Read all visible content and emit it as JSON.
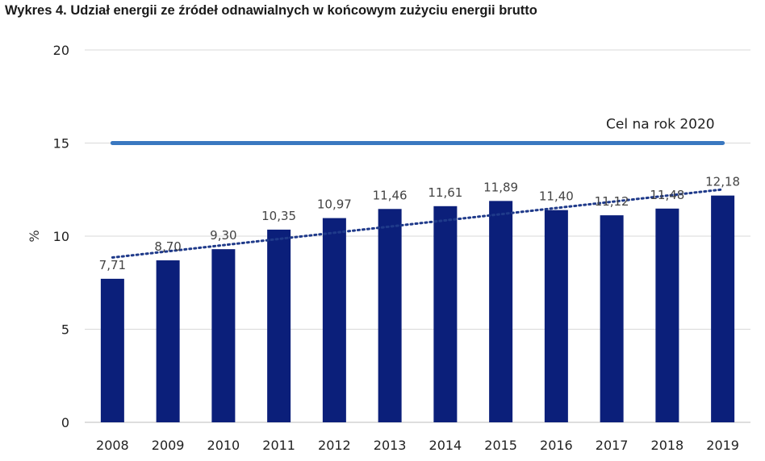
{
  "chart_data": {
    "type": "bar",
    "title": "Wykres 4. Udział energii ze źródeł odnawialnych w końcowym zużyciu energii brutto",
    "ylabel": "%",
    "xlabel": "",
    "ylim": [
      0,
      20
    ],
    "yticks": [
      0,
      5,
      10,
      15,
      20
    ],
    "grid": true,
    "categories": [
      "2008",
      "2009",
      "2010",
      "2011",
      "2012",
      "2013",
      "2014",
      "2015",
      "2016",
      "2017",
      "2018",
      "2019"
    ],
    "values": [
      7.71,
      8.7,
      9.3,
      10.35,
      10.97,
      11.46,
      11.61,
      11.89,
      11.4,
      11.12,
      11.48,
      12.18
    ],
    "value_labels": [
      "7,71",
      "8,70",
      "9,30",
      "10,35",
      "10,97",
      "11,46",
      "11,61",
      "11,89",
      "11,40",
      "11,12",
      "11,48",
      "12,18"
    ],
    "bar_color": "#0b1f7a",
    "trendline": {
      "style": "dotted",
      "color": "#1f3a8a"
    },
    "target": {
      "value": 15,
      "label": "Cel na rok 2020",
      "color": "#3a78c0"
    }
  }
}
